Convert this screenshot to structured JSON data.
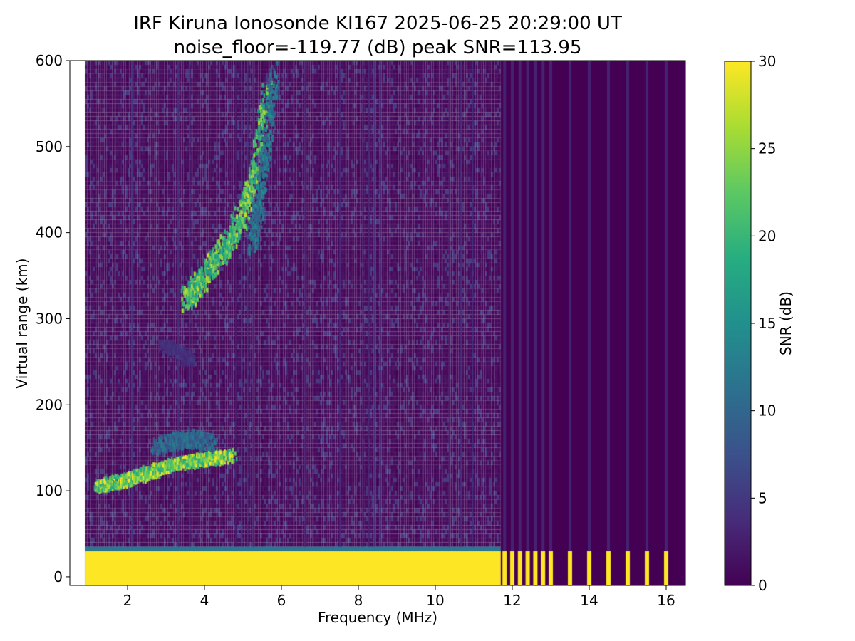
{
  "chart_data": {
    "type": "heatmap",
    "title": "IRF Kiruna Ionosonde KI167 2025-06-25 20:29:00  UT",
    "subtitle": "noise_floor=-119.77 (dB) peak SNR=113.95",
    "xlabel": "Frequency (MHz)",
    "ylabel": "Virtual range (km)",
    "xlim": [
      0.5,
      16.5
    ],
    "ylim": [
      -10,
      600
    ],
    "x_ticks": [
      2,
      4,
      6,
      8,
      10,
      12,
      14,
      16
    ],
    "y_ticks": [
      0,
      100,
      200,
      300,
      400,
      500,
      600
    ],
    "grid": false,
    "colorbar": {
      "label": "SNR (dB)",
      "range": [
        0,
        30
      ],
      "ticks": [
        0,
        5,
        10,
        15,
        20,
        25,
        30
      ],
      "colormap": "viridis",
      "colors": [
        "#440154",
        "#472c7a",
        "#3b518b",
        "#2c718e",
        "#21908d",
        "#27ad81",
        "#5cc863",
        "#aadc32",
        "#fde725"
      ]
    },
    "data_extent": {
      "freq_min": 0.9,
      "freq_max": 16.4,
      "range_min": -10,
      "range_max": 600
    },
    "traces": [
      {
        "name": "ground-clutter",
        "freq_range": [
          0.9,
          11.7
        ],
        "virtual_range_km": [
          -10,
          30
        ],
        "snr_db": 30
      },
      {
        "name": "E-layer echo",
        "freq": [
          1.2,
          1.8,
          2.3,
          2.8,
          3.2,
          3.7,
          4.2,
          4.7
        ],
        "virtual_range_km": [
          102,
          108,
          115,
          122,
          128,
          132,
          135,
          138
        ],
        "snr_db": 28
      },
      {
        "name": "E-layer echo band",
        "freq": [
          2.7,
          3.2,
          3.7,
          4.2
        ],
        "virtual_range_km": [
          150,
          155,
          158,
          152
        ],
        "snr_db": 12
      },
      {
        "name": "echo near 250 km",
        "freq": [
          2.9,
          3.3,
          3.6
        ],
        "virtual_range_km": [
          265,
          260,
          248
        ],
        "snr_db": 5
      },
      {
        "name": "F-layer echo",
        "freq": [
          3.5,
          3.8,
          4.2,
          4.6,
          5.0,
          5.3,
          5.6
        ],
        "virtual_range_km": [
          320,
          335,
          360,
          385,
          420,
          470,
          560
        ],
        "snr_db": 25
      },
      {
        "name": "F-layer faint",
        "freq": [
          5.2,
          5.4,
          5.6,
          5.8
        ],
        "virtual_range_km": [
          380,
          430,
          500,
          580
        ],
        "snr_db": 14
      },
      {
        "name": "sounding pulses",
        "freqs": [
          11.8,
          12.0,
          12.2,
          12.4,
          12.6,
          12.8,
          13.0,
          13.5,
          14.0,
          14.5,
          15.0,
          15.5,
          16.0
        ],
        "virtual_range_km": [
          -10,
          30
        ],
        "snr_db": 30
      }
    ]
  }
}
